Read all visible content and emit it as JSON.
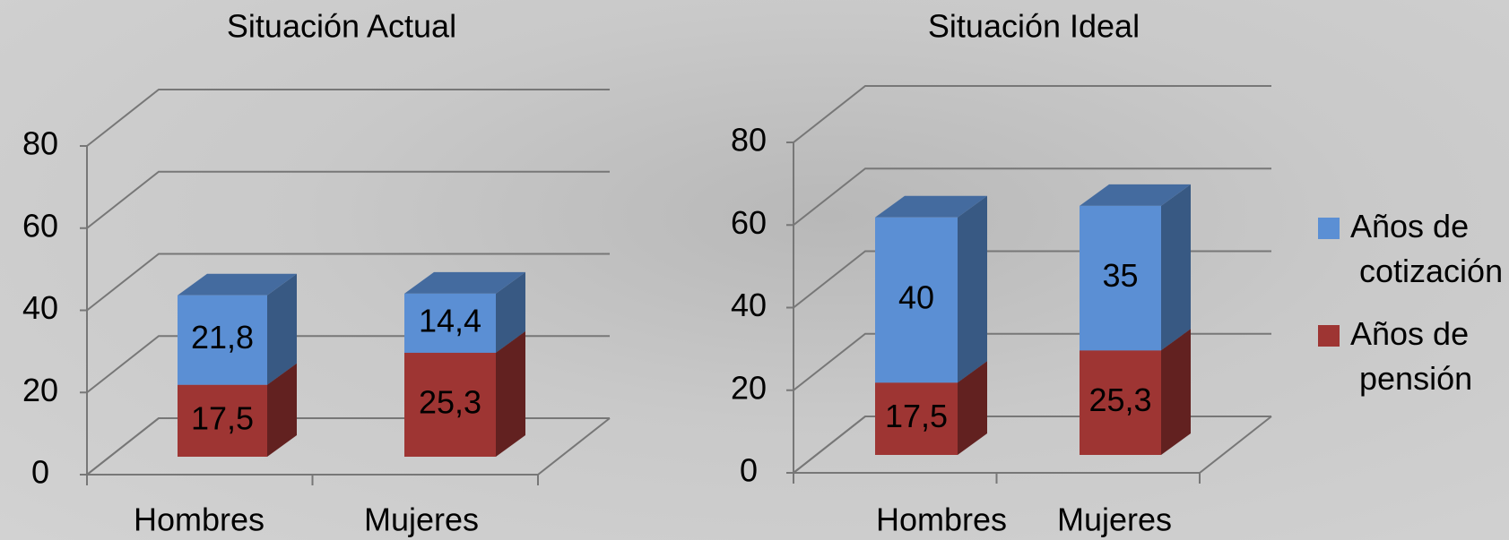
{
  "chart_data": [
    {
      "type": "bar3d-stacked",
      "title": "Situación Actual",
      "categories": [
        "Hombres",
        "Mujeres"
      ],
      "series": [
        {
          "color": "#9e3533",
          "values": [
            17.5,
            25.3
          ],
          "value_labels": [
            "17,5",
            "25,3"
          ]
        },
        {
          "color": "#5b8fd4",
          "values": [
            21.8,
            14.4
          ],
          "value_labels": [
            "21,8",
            "14,4"
          ]
        }
      ],
      "ylim": [
        0,
        80
      ],
      "yticks": [
        0,
        20,
        40,
        60,
        80
      ],
      "grid": true
    },
    {
      "type": "bar3d-stacked",
      "title": "Situación Ideal",
      "categories": [
        "Hombres",
        "Mujeres"
      ],
      "series": [
        {
          "name": "Años de pensión",
          "color": "#9e3533",
          "values": [
            17.5,
            25.3
          ],
          "value_labels": [
            "17,5",
            "25,3"
          ]
        },
        {
          "name": "Años de cotización",
          "color": "#5b8fd4",
          "values": [
            40,
            35
          ]
        }
      ],
      "ylim": [
        0,
        80
      ],
      "yticks": [
        0,
        20,
        40,
        60,
        80
      ],
      "grid": true,
      "legend": "right"
    }
  ]
}
